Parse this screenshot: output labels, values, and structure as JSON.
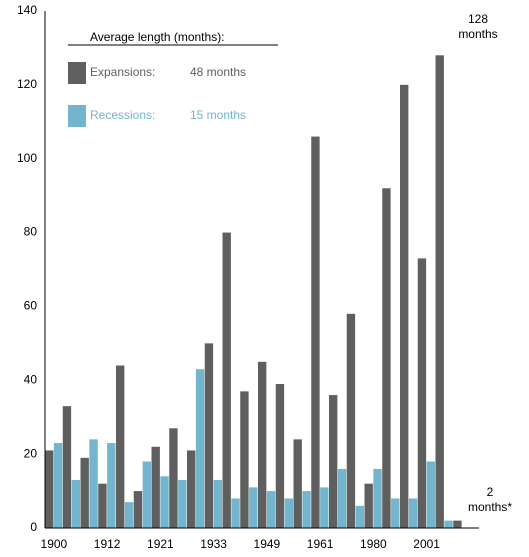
{
  "chart_data": {
    "type": "bar",
    "categories": [
      "1900",
      null,
      null,
      "1912",
      null,
      null,
      "1921",
      null,
      null,
      "1933",
      null,
      null,
      "1949",
      null,
      null,
      "1961",
      null,
      null,
      "1980",
      null,
      null,
      "2001",
      null,
      null
    ],
    "series": [
      {
        "name": "Expansions:",
        "color": "#5f5f5f",
        "average": "48 months",
        "values": [
          21,
          33,
          19,
          12,
          44,
          10,
          22,
          27,
          21,
          50,
          80,
          37,
          45,
          39,
          24,
          106,
          36,
          58,
          12,
          92,
          120,
          73,
          128,
          2
        ]
      },
      {
        "name": "Recessions:",
        "color": "#72b5cc",
        "average": "15 months",
        "values": [
          23,
          13,
          24,
          23,
          7,
          18,
          14,
          13,
          43,
          13,
          8,
          11,
          10,
          8,
          10,
          11,
          16,
          6,
          16,
          8,
          8,
          18,
          2,
          null
        ]
      }
    ],
    "legend_title": "Average length (months):",
    "annotations": [
      [
        "128",
        "months"
      ],
      [
        "2",
        "months*"
      ]
    ],
    "ylim": [
      0,
      140
    ],
    "yticks": [
      0,
      20,
      40,
      60,
      80,
      100,
      120,
      140
    ],
    "grid": false
  }
}
